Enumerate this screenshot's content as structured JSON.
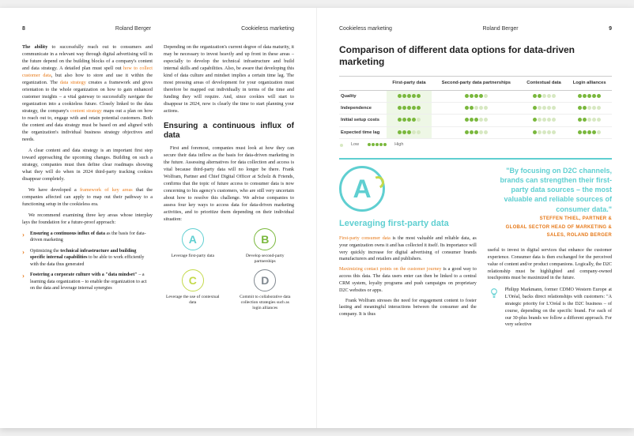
{
  "leftHeader": {
    "pageNumber": "8",
    "brand": "Roland Berger",
    "title": "Cookieless marketing"
  },
  "rightHeader": {
    "pageNumber": "9",
    "brand": "Roland Berger",
    "title": "Cookieless marketing"
  },
  "leftCol1": {
    "p1a": "The ability",
    "p1b": " to successfully reach out to consumers and communicate in a relevant way through digital advertising will in the future depend on the building blocks of a company's content and data strategy. A detailed plan must spell out ",
    "p1link1": "how to collect customer data",
    "p1c": ", but also how to store and use it within the organization. The ",
    "p1link2": "data strategy",
    "p1d": " creates a framework and gives orientation to the whole organization on how to gain enhanced customer insights – a vital gateway to successfully navigate the organization into a cookieless future. Closely linked to the data strategy, the company's ",
    "p1link3": "content strategy",
    "p1e": " maps out a plan on how to reach out to, engage with and retain potential customers. Both the content and data strategy must be based on and aligned with the organization's individual business strategy objectives and needs.",
    "p2": "A clear content and data strategy is an important first step toward approaching the upcoming changes. Building on such a strategy, companies must then define clear roadmaps showing what they will do when in 2024 third-party tracking cookies disappear completely.",
    "p3a": "We have developed a ",
    "p3link": "framework of key areas",
    "p3b": " that the companies affected can apply to map out their pathway to a functioning setup in the cookieless era.",
    "p4": "We recommend examining three key areas whose interplay lays the foundation for a future-proof approach:",
    "b1a": "Ensuring a continuous influx of data",
    "b1b": " as the basis for data-driven marketing",
    "b2a": "Optimizing",
    "b2b": " the ",
    "b2c": "technical infrastructure and building specific internal capabilities",
    "b2d": " to be able to work efficiently with the data thus generated",
    "b3a": "Fostering a corporate culture with a \"data mindset\"",
    "b3b": " – a learning data organization – to enable the organization to act on the data and leverage internal synergies"
  },
  "leftCol2": {
    "p1": "Depending on the organization's current degree of data maturity, it may be necessary to invest heavily and up front in these areas – especially to develop the technical infrastructure and build internal skills and capabilities. Also, be aware that developing this kind of data culture and mindset implies a certain time lag. The most pressing areas of development for your organization must therefore be mapped out individually in terms of the time and funding they will require. And, since cookies will start to disappear in 2024, now is clearly the time to start planning your actions.",
    "h2": "Ensuring a continuous influx of data",
    "p2": "First and foremost, companies must look at how they can secure their data inflow as the basis for data-driven marketing in the future. Assessing alternatives for data collection and access is vital because third-party data will no longer be there. Frank Wolfram, Partner and Chief Digital Officer at Scholz & Friends, confirms that the topic of future access to consumer data is now concerning to his agency's customers, who are still very uncertain about how to resolve this challenge. We advise companies to assess four key ways to access data for data-driven marketing activities, and to prioritize them depending on their individual situation:"
  },
  "abcd": {
    "A": "Leverage first-party data",
    "B": "Develop second-party partnerships",
    "C": "Leverage the use of contextual data",
    "D": "Commit to collaborative data collection strategies such as login alliances"
  },
  "chart": {
    "title": "Comparison of different data options for data-driven marketing",
    "colHeaders": [
      "First-party data",
      "Second-party data partnerships",
      "Contextual data",
      "Login alliances"
    ],
    "rows": [
      {
        "label": "Quality",
        "v": [
          5,
          4,
          2,
          5
        ]
      },
      {
        "label": "Independence",
        "v": [
          5,
          2,
          1,
          2
        ]
      },
      {
        "label": "Initial setup costs",
        "v": [
          4,
          3,
          1,
          2
        ]
      },
      {
        "label": "Expected time lag",
        "v": [
          3,
          3,
          1,
          4
        ]
      }
    ],
    "legendLow": "Low",
    "legendHigh": "High",
    "colors": {
      "on": "#7ab83d",
      "off": "#d7e8c2",
      "highlightBg": "#eef7e6"
    }
  },
  "quote": {
    "text": "\"By focusing on D2C channels, brands can strengthen their first-party data sources – the most valuable and reliable sources of consumer data.\"",
    "attr1": "STEFFEN THIEL, PARTNER &",
    "attr2": "GLOBAL SECTOR HEAD OF MARKETING &",
    "attr3": "SALES, ROLAND BERGER"
  },
  "rightLower": {
    "bigLetter": "A",
    "sectTitle": "Leveraging first-party data",
    "leftP1a": "First-party consumer data",
    "leftP1b": " is the most valuable and reliable data, as your organization owns it and has collected it itself. Its importance will very quickly increase for digital advertising of consumer brands manufacturers and retailers and publishers.",
    "leftP2a": "Maximizing contact points on the customer journey",
    "leftP2b": " is a good way to access this data. The data users enter can then be linked to a central CRM system, loyalty programs and push campaigns on proprietary D2C websites or apps.",
    "leftP3": "Frank Wolfram stresses the need for engagement content to foster lasting and meaningful interactions between the consumer and the company. It is thus",
    "rightP1": "useful to invest in digital services that enhance the customer experience. Consumer data is then exchanged for the perceived value of content and/or product companions. Logically, the D2C relationship must be highlighted and company-owned touchpoints must be maximized in the future.",
    "bulbP": "Philipp Markmann, former CDMO Western Europe at L'Oréal, backs direct relationships with customers: \"A strategic priority for L'Oréal is the D2C business – of course, depending on the specific brand. For each of our 30-plus brands we follow a different approach. For very selective"
  }
}
